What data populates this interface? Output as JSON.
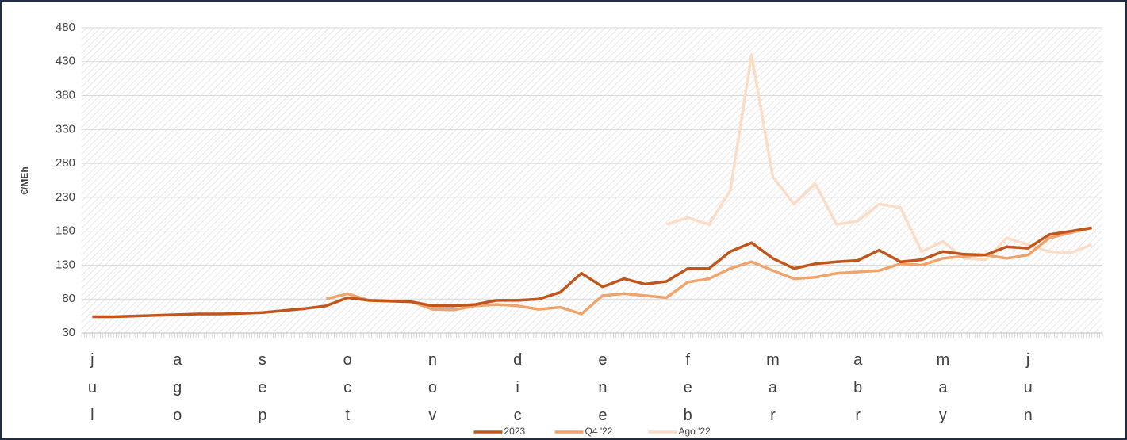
{
  "chart_data": {
    "type": "line",
    "ylabel": "€/MEh",
    "categories": [
      "jul",
      null,
      null,
      null,
      "ago",
      null,
      null,
      null,
      "sep",
      null,
      null,
      null,
      "oct",
      null,
      null,
      null,
      "nov",
      null,
      null,
      null,
      "dic",
      null,
      null,
      null,
      "ene",
      null,
      null,
      null,
      "feb",
      null,
      null,
      null,
      "mar",
      null,
      null,
      null,
      "abr",
      null,
      null,
      null,
      "may",
      null,
      null,
      null,
      "jun",
      null,
      null,
      null
    ],
    "series": [
      {
        "name": "2023",
        "color": "#c0561b",
        "values": [
          54,
          54,
          55,
          56,
          57,
          58,
          58,
          59,
          60,
          63,
          66,
          70,
          82,
          78,
          77,
          76,
          70,
          70,
          72,
          78,
          78,
          80,
          90,
          118,
          98,
          110,
          102,
          106,
          125,
          125,
          150,
          163,
          140,
          125,
          132,
          135,
          137,
          152,
          135,
          138,
          150,
          146,
          145,
          157,
          155,
          175,
          180,
          185
        ]
      },
      {
        "name": "Q4 '22",
        "color": "#f0a46c",
        "values": [
          null,
          null,
          null,
          null,
          null,
          null,
          null,
          null,
          null,
          null,
          null,
          80,
          88,
          78,
          77,
          76,
          65,
          64,
          70,
          72,
          70,
          65,
          68,
          58,
          85,
          88,
          85,
          82,
          105,
          110,
          125,
          135,
          122,
          110,
          112,
          118,
          120,
          122,
          132,
          130,
          140,
          143,
          145,
          140,
          145,
          170,
          178,
          185
        ]
      },
      {
        "name": "Ago '22",
        "color": "#fbdcc6",
        "values": [
          null,
          null,
          null,
          null,
          null,
          null,
          null,
          null,
          null,
          null,
          null,
          null,
          null,
          null,
          null,
          null,
          null,
          null,
          null,
          null,
          null,
          null,
          null,
          null,
          null,
          null,
          null,
          190,
          200,
          190,
          240,
          440,
          260,
          220,
          250,
          190,
          195,
          220,
          215,
          150,
          165,
          140,
          138,
          170,
          160,
          150,
          148,
          160
        ]
      }
    ],
    "ylim": [
      30,
      480
    ],
    "yticks": [
      30,
      80,
      130,
      180,
      230,
      280,
      330,
      380,
      430,
      480
    ],
    "grid": true,
    "legend": "bottom"
  }
}
